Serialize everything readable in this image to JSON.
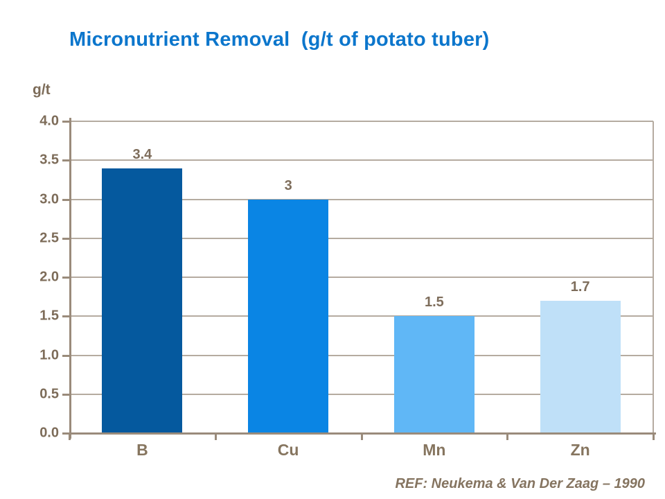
{
  "slide": {
    "title": "Micronutrient Removal  (g/t of potato tuber)",
    "reference": "REF: Neukema & Van Der Zaag – 1990"
  },
  "colors": {
    "title_blue": "#0C76CC",
    "axis_line": "#9A8B7B",
    "gridline": "#B5ABA0",
    "tick_text": "#7D6C59",
    "category_text": "#86755F",
    "reference_text": "#857460",
    "bar_b": "#05599E",
    "bar_cu": "#0A85E4",
    "bar_mn": "#60B7F6",
    "bar_zn": "#BFE0F8"
  },
  "chart_data": {
    "type": "bar",
    "title": "Micronutrient Removal (g/t of potato tuber)",
    "unit_label": "g/t",
    "categories": [
      "B",
      "Cu",
      "Mn",
      "Zn"
    ],
    "values": [
      3.4,
      3,
      1.5,
      1.7
    ],
    "value_labels": [
      "3.4",
      "3",
      "1.5",
      "1.7"
    ],
    "bar_colors": [
      "#05599E",
      "#0A85E4",
      "#60B7F6",
      "#BFE0F8"
    ],
    "xlabel": "",
    "ylabel": "g/t",
    "ylim": [
      0,
      4
    ],
    "ytick_step": 0.5,
    "ytick_labels": [
      "4.0",
      "3.5",
      "3.0",
      "2.5",
      "2.0",
      "1.5",
      "1.0",
      "0.5",
      "0.0"
    ],
    "grid": true,
    "legend_position": "none"
  }
}
